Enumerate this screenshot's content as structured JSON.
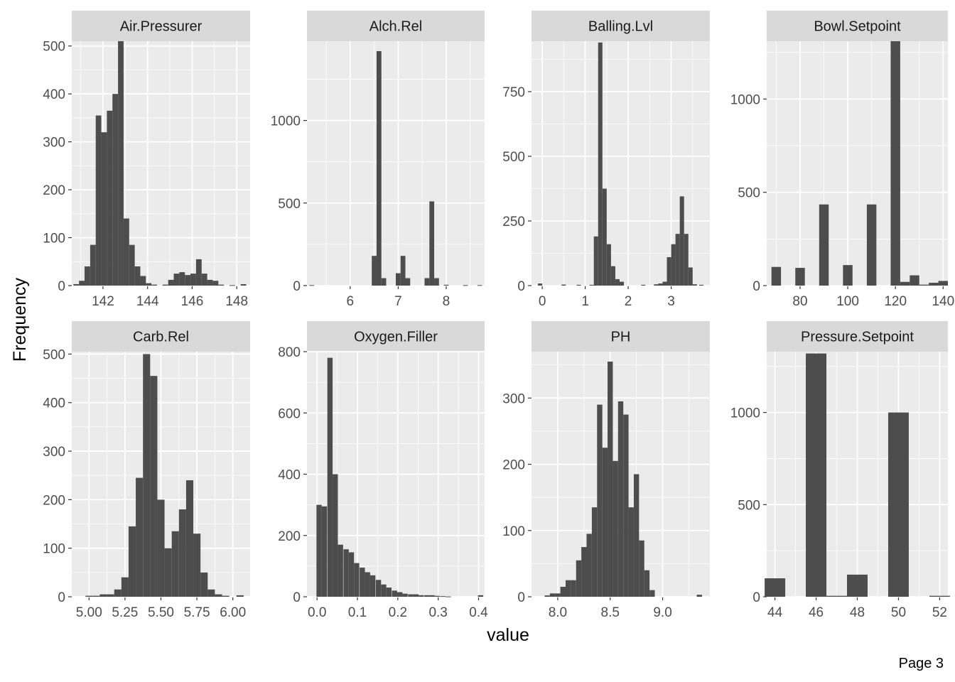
{
  "page": {
    "label": "Page 3"
  },
  "colors": {
    "panel_bg": "#ebebeb",
    "strip_bg": "#d9d9d9",
    "grid_major": "#ffffff",
    "bar_fill": "#4d4d4d"
  },
  "chart_data": {
    "type": "bar",
    "subtype": "faceted-histogram",
    "xlabel": "value",
    "ylabel": "Frequency",
    "grid": true,
    "legend": "none",
    "facets": [
      {
        "name": "Air.Pressurer",
        "xlim": [
          140.6,
          148.6
        ],
        "ylim": [
          0,
          510
        ],
        "xticks": [
          142,
          144,
          146,
          148
        ],
        "yticks": [
          0,
          100,
          200,
          300,
          400,
          500
        ],
        "x": [
          140.8,
          141.05,
          141.3,
          141.55,
          141.8,
          142.05,
          142.3,
          142.55,
          142.8,
          143.05,
          143.3,
          143.55,
          143.8,
          144.05,
          144.3,
          144.55,
          144.8,
          145.05,
          145.3,
          145.55,
          145.8,
          146.05,
          146.3,
          146.55,
          146.8,
          147.05,
          147.3,
          147.55,
          147.8,
          148.05,
          148.3
        ],
        "values": [
          3,
          10,
          40,
          85,
          355,
          320,
          365,
          400,
          510,
          140,
          85,
          40,
          20,
          5,
          2,
          0,
          2,
          12,
          25,
          28,
          22,
          25,
          55,
          25,
          12,
          10,
          2,
          0,
          1,
          0,
          3
        ]
      },
      {
        "name": "Alch.Rel",
        "xlim": [
          5.1,
          8.8
        ],
        "ylim": [
          0,
          1480
        ],
        "xticks": [
          6,
          7,
          8
        ],
        "yticks": [
          0,
          500,
          1000
        ],
        "x": [
          5.2,
          5.3,
          5.4,
          5.5,
          5.6,
          5.7,
          5.8,
          5.9,
          6.0,
          6.1,
          6.2,
          6.3,
          6.4,
          6.5,
          6.6,
          6.7,
          6.8,
          6.9,
          7.0,
          7.1,
          7.2,
          7.3,
          7.4,
          7.5,
          7.6,
          7.7,
          7.8,
          7.9,
          8.0,
          8.1,
          8.2,
          8.3,
          8.4,
          8.5,
          8.6,
          8.7
        ],
        "values": [
          3,
          0,
          0,
          0,
          0,
          0,
          0,
          0,
          0,
          0,
          0,
          0,
          0,
          180,
          1420,
          45,
          0,
          0,
          75,
          180,
          45,
          0,
          0,
          0,
          45,
          510,
          45,
          0,
          5,
          0,
          0,
          0,
          3,
          0,
          0,
          3
        ]
      },
      {
        "name": "Balling.Lvl",
        "xlim": [
          -0.25,
          3.9
        ],
        "ylim": [
          0,
          945
        ],
        "xticks": [
          0,
          1,
          2,
          3
        ],
        "yticks": [
          0,
          250,
          500,
          750
        ],
        "x": [
          -0.05,
          0.25,
          0.5,
          0.85,
          1.15,
          1.25,
          1.35,
          1.45,
          1.55,
          1.65,
          1.75,
          1.85,
          2.05,
          2.35,
          2.65,
          2.75,
          2.85,
          2.95,
          3.05,
          3.15,
          3.25,
          3.35,
          3.45,
          3.55,
          3.7
        ],
        "values": [
          8,
          0,
          4,
          3,
          3,
          190,
          940,
          375,
          160,
          75,
          25,
          15,
          0,
          3,
          5,
          8,
          15,
          110,
          160,
          200,
          345,
          200,
          70,
          5,
          3
        ]
      },
      {
        "name": "Bowl.Setpoint",
        "xlim": [
          66,
          142
        ],
        "ylim": [
          0,
          1310
        ],
        "xticks": [
          80,
          100,
          120,
          140
        ],
        "yticks": [
          0,
          500,
          1000
        ],
        "x": [
          70,
          80,
          90,
          100,
          110,
          120,
          124,
          128,
          132,
          136,
          140
        ],
        "values": [
          100,
          95,
          435,
          110,
          435,
          1310,
          20,
          55,
          5,
          15,
          25
        ]
      },
      {
        "name": "Carb.Rel",
        "xlim": [
          4.88,
          6.12
        ],
        "ylim": [
          0,
          505
        ],
        "xticks": [
          "5.00",
          "5.25",
          "5.50",
          "5.75",
          "6.00"
        ],
        "yticks": [
          0,
          100,
          200,
          300,
          400,
          500
        ],
        "x": [
          5.0,
          5.05,
          5.1,
          5.15,
          5.2,
          5.25,
          5.3,
          5.35,
          5.4,
          5.45,
          5.5,
          5.55,
          5.6,
          5.65,
          5.7,
          5.75,
          5.8,
          5.85,
          5.9,
          5.95,
          6.0,
          6.05
        ],
        "values": [
          2,
          2,
          5,
          5,
          15,
          40,
          145,
          245,
          500,
          455,
          200,
          100,
          135,
          180,
          240,
          130,
          50,
          15,
          5,
          2,
          0,
          3
        ]
      },
      {
        "name": "Oxygen.Filler",
        "xlim": [
          -0.025,
          0.415
        ],
        "ylim": [
          0,
          800
        ],
        "xticks": [
          "0.0",
          "0.1",
          "0.2",
          "0.3",
          "0.4"
        ],
        "yticks": [
          0,
          200,
          400,
          600,
          800
        ],
        "x": [
          0.005,
          0.018,
          0.032,
          0.045,
          0.058,
          0.072,
          0.085,
          0.098,
          0.112,
          0.125,
          0.138,
          0.152,
          0.165,
          0.178,
          0.192,
          0.205,
          0.218,
          0.232,
          0.245,
          0.258,
          0.272,
          0.285,
          0.298,
          0.312,
          0.325,
          0.338,
          0.352,
          0.365,
          0.378,
          0.392,
          0.405
        ],
        "values": [
          300,
          295,
          780,
          400,
          170,
          155,
          145,
          110,
          95,
          80,
          70,
          55,
          40,
          30,
          20,
          15,
          10,
          8,
          8,
          5,
          5,
          5,
          3,
          2,
          1,
          0,
          0,
          0,
          0,
          0,
          5
        ]
      },
      {
        "name": "PH",
        "xlim": [
          7.75,
          9.45
        ],
        "ylim": [
          0,
          370
        ],
        "xticks": [
          "8.0",
          "8.5",
          "9.0"
        ],
        "yticks": [
          0,
          100,
          200,
          300
        ],
        "x": [
          7.85,
          7.9,
          7.95,
          8.0,
          8.05,
          8.1,
          8.15,
          8.2,
          8.25,
          8.3,
          8.35,
          8.4,
          8.45,
          8.5,
          8.55,
          8.6,
          8.65,
          8.7,
          8.75,
          8.8,
          8.85,
          8.9,
          8.95,
          9.0,
          9.05,
          9.1,
          9.15,
          9.2,
          9.25,
          9.3,
          9.35
        ],
        "values": [
          0,
          2,
          5,
          5,
          15,
          25,
          25,
          55,
          75,
          95,
          135,
          290,
          225,
          355,
          205,
          295,
          275,
          135,
          185,
          85,
          40,
          10,
          0,
          0,
          0,
          0,
          0,
          0,
          0,
          0,
          3
        ]
      },
      {
        "name": "Pressure.Setpoint",
        "xlim": [
          43.6,
          52.4
        ],
        "ylim": [
          0,
          1330
        ],
        "xticks": [
          44,
          46,
          48,
          50,
          52
        ],
        "yticks": [
          0,
          500,
          1000
        ],
        "x": [
          44,
          46,
          47,
          48,
          50,
          52
        ],
        "values": [
          100,
          1320,
          5,
          120,
          1000,
          5
        ]
      }
    ]
  }
}
